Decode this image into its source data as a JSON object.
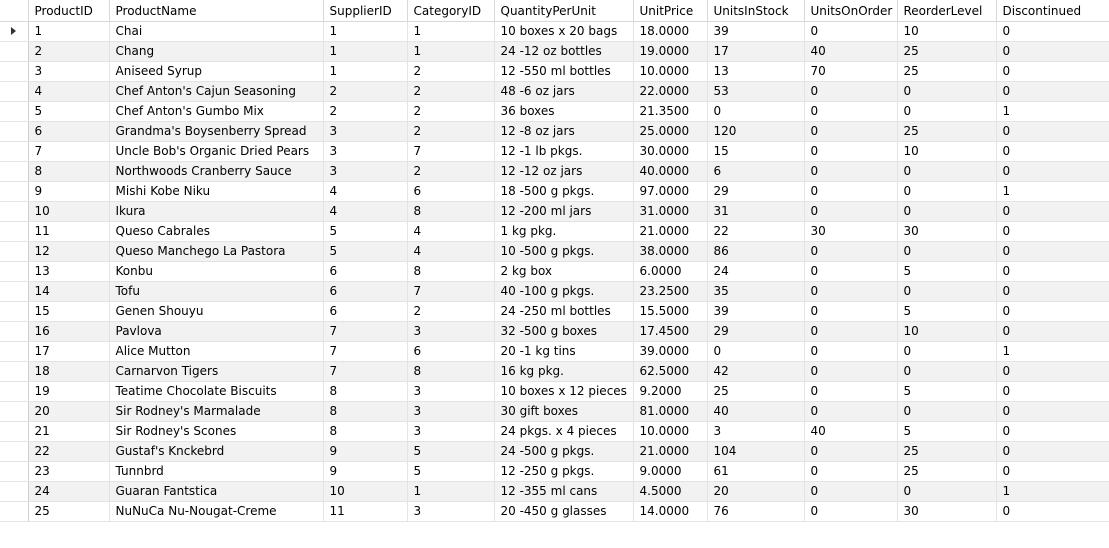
{
  "columns": [
    "ProductID",
    "ProductName",
    "SupplierID",
    "CategoryID",
    "QuantityPerUnit",
    "UnitPrice",
    "UnitsInStock",
    "UnitsOnOrder",
    "ReorderLevel",
    "Discontinued"
  ],
  "rows": [
    [
      "1",
      "Chai",
      "1",
      "1",
      "10 boxes x 20 bags",
      "18.0000",
      "39",
      "0",
      "10",
      "0"
    ],
    [
      "2",
      "Chang",
      "1",
      "1",
      "24 -12 oz bottles",
      "19.0000",
      "17",
      "40",
      "25",
      "0"
    ],
    [
      "3",
      "Aniseed Syrup",
      "1",
      "2",
      "12 -550 ml bottles",
      "10.0000",
      "13",
      "70",
      "25",
      "0"
    ],
    [
      "4",
      "Chef Anton's Cajun Seasoning",
      "2",
      "2",
      "48 -6 oz jars",
      "22.0000",
      "53",
      "0",
      "0",
      "0"
    ],
    [
      "5",
      "Chef Anton's Gumbo Mix",
      "2",
      "2",
      "36 boxes",
      "21.3500",
      "0",
      "0",
      "0",
      "1"
    ],
    [
      "6",
      "Grandma's Boysenberry Spread",
      "3",
      "2",
      "12 -8 oz jars",
      "25.0000",
      "120",
      "0",
      "25",
      "0"
    ],
    [
      "7",
      "Uncle Bob's Organic Dried Pears",
      "3",
      "7",
      "12 -1 lb pkgs.",
      "30.0000",
      "15",
      "0",
      "10",
      "0"
    ],
    [
      "8",
      "Northwoods Cranberry Sauce",
      "3",
      "2",
      "12 -12 oz jars",
      "40.0000",
      "6",
      "0",
      "0",
      "0"
    ],
    [
      "9",
      "Mishi Kobe Niku",
      "4",
      "6",
      "18 -500 g pkgs.",
      "97.0000",
      "29",
      "0",
      "0",
      "1"
    ],
    [
      "10",
      "Ikura",
      "4",
      "8",
      "12 -200 ml jars",
      "31.0000",
      "31",
      "0",
      "0",
      "0"
    ],
    [
      "11",
      "Queso Cabrales",
      "5",
      "4",
      "1 kg pkg.",
      "21.0000",
      "22",
      "30",
      "30",
      "0"
    ],
    [
      "12",
      "Queso Manchego La Pastora",
      "5",
      "4",
      "10 -500 g pkgs.",
      "38.0000",
      "86",
      "0",
      "0",
      "0"
    ],
    [
      "13",
      "Konbu",
      "6",
      "8",
      "2 kg box",
      "6.0000",
      "24",
      "0",
      "5",
      "0"
    ],
    [
      "14",
      "Tofu",
      "6",
      "7",
      "40 -100 g pkgs.",
      "23.2500",
      "35",
      "0",
      "0",
      "0"
    ],
    [
      "15",
      "Genen Shouyu",
      "6",
      "2",
      "24 -250 ml bottles",
      "15.5000",
      "39",
      "0",
      "5",
      "0"
    ],
    [
      "16",
      "Pavlova",
      "7",
      "3",
      "32 -500 g boxes",
      "17.4500",
      "29",
      "0",
      "10",
      "0"
    ],
    [
      "17",
      "Alice Mutton",
      "7",
      "6",
      "20 -1 kg tins",
      "39.0000",
      "0",
      "0",
      "0",
      "1"
    ],
    [
      "18",
      "Carnarvon Tigers",
      "7",
      "8",
      "16 kg pkg.",
      "62.5000",
      "42",
      "0",
      "0",
      "0"
    ],
    [
      "19",
      "Teatime Chocolate Biscuits",
      "8",
      "3",
      "10 boxes x 12 pieces",
      "9.2000",
      "25",
      "0",
      "5",
      "0"
    ],
    [
      "20",
      "Sir Rodney's Marmalade",
      "8",
      "3",
      "30 gift boxes",
      "81.0000",
      "40",
      "0",
      "0",
      "0"
    ],
    [
      "21",
      "Sir Rodney's Scones",
      "8",
      "3",
      "24 pkgs. x 4 pieces",
      "10.0000",
      "3",
      "40",
      "5",
      "0"
    ],
    [
      "22",
      "Gustaf's Knckebrd",
      "9",
      "5",
      "24 -500 g pkgs.",
      "21.0000",
      "104",
      "0",
      "25",
      "0"
    ],
    [
      "23",
      "Tunnbrd",
      "9",
      "5",
      "12 -250 g pkgs.",
      "9.0000",
      "61",
      "0",
      "25",
      "0"
    ],
    [
      "24",
      "Guaran Fantstica",
      "10",
      "1",
      "12 -355 ml cans",
      "4.5000",
      "20",
      "0",
      "0",
      "1"
    ],
    [
      "25",
      "NuNuCa Nu-Nougat-Creme",
      "11",
      "3",
      "20 -450 g glasses",
      "14.0000",
      "76",
      "0",
      "30",
      "0"
    ]
  ],
  "selected_row": 0,
  "icons": {
    "row_selector": "current-row-arrow-icon"
  },
  "colors": {
    "alt_row": "#f2f2f2",
    "grid_line": "#e3e3e3"
  }
}
